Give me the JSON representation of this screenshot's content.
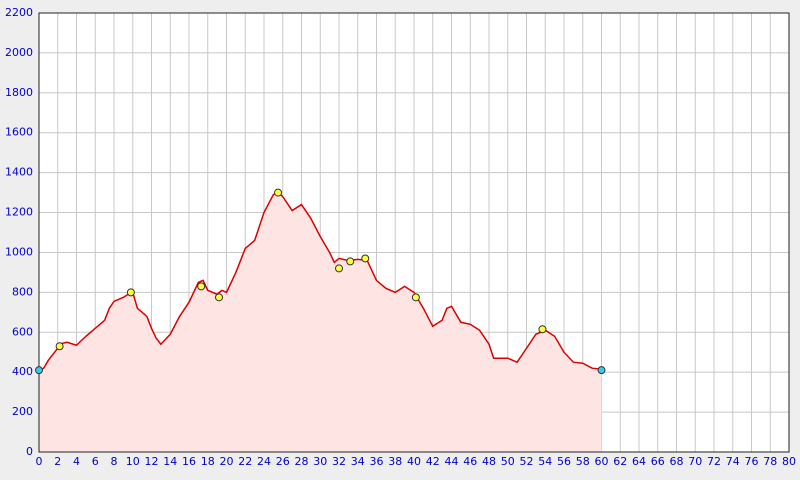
{
  "chart_data": {
    "type": "area",
    "x": [
      0,
      0.5,
      1,
      2,
      2.5,
      3,
      4,
      5,
      6,
      7,
      7.5,
      8,
      9,
      9.5,
      10,
      10.5,
      11,
      11.5,
      12,
      12.5,
      13,
      14,
      15,
      16,
      17,
      17.5,
      18,
      18.5,
      19,
      19.5,
      20,
      21,
      22,
      23,
      24,
      25,
      25.5,
      26,
      27,
      28,
      29,
      30,
      31,
      31.5,
      32,
      33,
      34,
      35,
      36,
      37,
      38,
      39,
      40,
      41,
      42,
      43,
      43.5,
      44,
      45,
      46,
      47,
      48,
      48.5,
      50,
      51,
      52,
      53,
      54,
      55,
      56,
      57,
      58,
      59,
      60
    ],
    "values": [
      410,
      420,
      460,
      520,
      545,
      550,
      535,
      580,
      620,
      660,
      720,
      755,
      775,
      790,
      800,
      720,
      700,
      680,
      620,
      570,
      540,
      590,
      680,
      750,
      850,
      860,
      810,
      800,
      790,
      810,
      800,
      900,
      1020,
      1060,
      1200,
      1290,
      1300,
      1280,
      1210,
      1240,
      1170,
      1080,
      1000,
      950,
      970,
      960,
      965,
      960,
      860,
      820,
      800,
      830,
      800,
      720,
      630,
      660,
      720,
      730,
      650,
      640,
      610,
      540,
      470,
      470,
      450,
      520,
      590,
      610,
      580,
      500,
      450,
      445,
      420,
      415
    ],
    "line_color": "#dd0000",
    "fill_color": "#ffe4e4",
    "markers": [
      {
        "color": "#33ccee",
        "x": [
          0,
          60
        ],
        "values": [
          410,
          410
        ]
      },
      {
        "color": "#ffff44",
        "x": [
          2.2,
          9.8,
          17.3,
          19.2,
          25.5,
          32,
          33.2,
          34.8,
          40.2,
          53.7
        ],
        "values": [
          530,
          800,
          830,
          775,
          1300,
          920,
          955,
          970,
          775,
          615
        ]
      }
    ],
    "xlim": [
      0,
      80
    ],
    "ylim": [
      0,
      2200
    ],
    "xticks": [
      0,
      2,
      4,
      6,
      8,
      10,
      12,
      14,
      16,
      18,
      20,
      22,
      24,
      26,
      28,
      30,
      32,
      34,
      36,
      38,
      40,
      42,
      44,
      46,
      48,
      50,
      52,
      54,
      56,
      58,
      60,
      62,
      64,
      66,
      68,
      70,
      72,
      74,
      76,
      78,
      80
    ],
    "yticks": [
      0,
      200,
      400,
      600,
      800,
      1000,
      1200,
      1400,
      1600,
      1800,
      2000,
      2200
    ],
    "grid": true
  }
}
